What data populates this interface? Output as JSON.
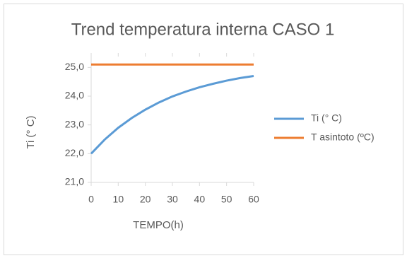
{
  "chart_data": {
    "type": "line",
    "title": "Trend temperatura interna CASO 1",
    "x_label": "TEMPO(h)",
    "y_label": "Ti (° C)",
    "x": [
      0,
      5,
      10,
      15,
      20,
      25,
      30,
      35,
      40,
      45,
      50,
      55,
      60
    ],
    "series": [
      {
        "name": "Ti (° C)",
        "color": "#5b9bd5",
        "values": [
          22.0,
          22.49,
          22.9,
          23.24,
          23.53,
          23.78,
          23.99,
          24.16,
          24.31,
          24.43,
          24.54,
          24.63,
          24.7
        ]
      },
      {
        "name": "T asintoto (ºC)",
        "color": "#ed7d31",
        "values": [
          25.1,
          25.1,
          25.1,
          25.1,
          25.1,
          25.1,
          25.1,
          25.1,
          25.1,
          25.1,
          25.1,
          25.1,
          25.1
        ]
      }
    ],
    "xlim": [
      0,
      60
    ],
    "xticks": [
      0,
      10,
      20,
      30,
      40,
      50,
      60
    ],
    "ylim": [
      21,
      25.5
    ],
    "yticks": [
      {
        "value": 21,
        "label": "21,0"
      },
      {
        "value": 22,
        "label": "22,0"
      },
      {
        "value": 23,
        "label": "23,0"
      },
      {
        "value": 24,
        "label": "24,0"
      },
      {
        "value": 25,
        "label": "25,0"
      }
    ],
    "grid": false,
    "legend": "right"
  }
}
